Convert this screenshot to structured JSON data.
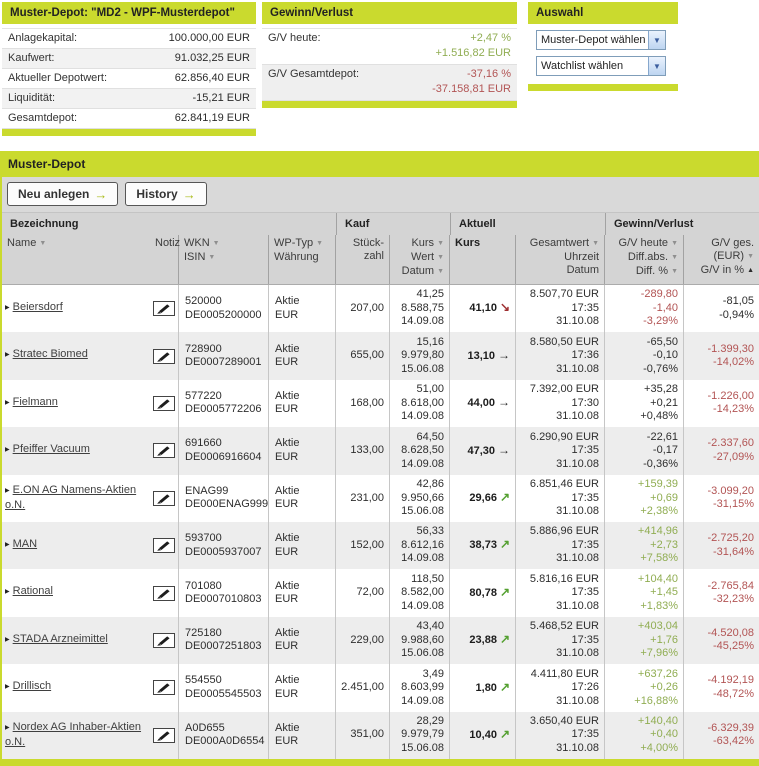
{
  "colors": {
    "accent_green": "#cada2e",
    "positive_text": "#90ad52",
    "negative_text": "#b25454",
    "trend_up": "#54a030",
    "trend_down": "#9e2f31"
  },
  "icons": {
    "arrow_right": "→",
    "sort_desc": "▼",
    "sort_asc": "▲",
    "trend_up": "↗",
    "trend_down": "↘",
    "trend_flat": "→",
    "select_chevron": "▼",
    "row_bullet": "▶"
  },
  "panels": {
    "depot": {
      "title": "Muster-Depot: \"MD2 - WPF-Musterdepot\"",
      "rows": [
        {
          "label": "Anlagekapital:",
          "value": "100.000,00 EUR"
        },
        {
          "label": "Kaufwert:",
          "value": "91.032,25 EUR"
        },
        {
          "label": "Aktueller Depotwert:",
          "value": "62.856,40 EUR"
        },
        {
          "label": "Liquidität:",
          "value": "-15,21 EUR"
        },
        {
          "label": "Gesamtdepot:",
          "value": "62.841,19 EUR"
        }
      ]
    },
    "gewinn_verlust": {
      "title": "Gewinn/Verlust",
      "rows": [
        {
          "label": "G/V heute:",
          "percent": "+2,47 %",
          "eur": "+1.516,82 EUR",
          "tone": "positive"
        },
        {
          "label": "G/V Gesamtdepot:",
          "percent": "-37,16 %",
          "eur": "-37.158,81 EUR",
          "tone": "negative"
        }
      ]
    },
    "auswahl": {
      "title": "Auswahl",
      "selects": [
        {
          "value": "Muster-Depot wählen"
        },
        {
          "value": "Watchlist wählen"
        }
      ]
    }
  },
  "table": {
    "title": "Muster-Depot",
    "buttons": [
      {
        "label": "Neu anlegen"
      },
      {
        "label": "History"
      }
    ],
    "groups": [
      "Bezeichnung",
      "Kauf",
      "Aktuell",
      "Gewinn/Verlust"
    ],
    "subheaders": [
      {
        "key": "name",
        "align": "left",
        "sep": false,
        "bold": false,
        "lines": [
          [
            "Name",
            "desc"
          ]
        ]
      },
      {
        "key": "notiz",
        "align": "right",
        "sep": true,
        "bold": false,
        "lines": [
          [
            "Notiz",
            null
          ]
        ]
      },
      {
        "key": "wkn-isin",
        "align": "left",
        "sep": true,
        "bold": false,
        "lines": [
          [
            "WKN",
            "desc"
          ],
          [
            "ISIN",
            "desc"
          ]
        ]
      },
      {
        "key": "wptyp-waehrung",
        "align": "left",
        "sep": true,
        "bold": false,
        "lines": [
          [
            "WP-Typ",
            "desc"
          ],
          [
            "Währung",
            null
          ]
        ]
      },
      {
        "key": "stueckzahl",
        "align": "right",
        "sep": true,
        "bold": false,
        "lines": [
          [
            "Stück-",
            null
          ],
          [
            "zahl",
            null
          ]
        ]
      },
      {
        "key": "kauf-kurs-wert-datum",
        "align": "right",
        "sep": true,
        "bold": false,
        "lines": [
          [
            "Kurs",
            "desc"
          ],
          [
            "Wert",
            "desc"
          ],
          [
            "Datum",
            "desc"
          ]
        ]
      },
      {
        "key": "aktuell-kurs",
        "align": "left",
        "sep": true,
        "bold": true,
        "lines": [
          [
            "Kurs",
            null
          ]
        ]
      },
      {
        "key": "gesamtwert-uhrzeit-datum",
        "align": "right",
        "sep": true,
        "bold": false,
        "lines": [
          [
            "Gesamtwert",
            "desc"
          ],
          [
            "Uhrzeit",
            null
          ],
          [
            "Datum",
            null
          ]
        ]
      },
      {
        "key": "gv-heute",
        "align": "right",
        "sep": true,
        "bold": false,
        "lines": [
          [
            "G/V heute",
            "desc"
          ],
          [
            "Diff.abs.",
            "desc"
          ],
          [
            "Diff. %",
            "desc"
          ]
        ]
      },
      {
        "key": "gv-ges",
        "align": "right",
        "sep": false,
        "bold": false,
        "lines": [
          [
            "G/V ges.",
            null
          ],
          [
            "(EUR)",
            "desc"
          ],
          [
            "G/V in %",
            "asc"
          ]
        ]
      }
    ],
    "rows": [
      {
        "name": "Beiersdorf",
        "wkn": "520000",
        "isin": "DE0005200000",
        "typ": "Aktie",
        "waehrung": "EUR",
        "stueckzahl": "207,00",
        "kauf_kurs": "41,25",
        "kauf_wert": "8.588,75",
        "kauf_datum": "14.09.08",
        "kurs": "41,10",
        "trend": "down",
        "gesamtwert": "8.507,70 EUR",
        "uhrzeit": "17:35",
        "datum": "31.10.08",
        "gv_heute": {
          "eur": "-289,80",
          "abs": "-1,40",
          "pct": "-3,29%",
          "tone": "negative"
        },
        "gv_ges": {
          "eur": "-81,05",
          "pct": "-0,94%",
          "tone": "neutral"
        }
      },
      {
        "name": "Stratec Biomed",
        "wkn": "728900",
        "isin": "DE0007289001",
        "typ": "Aktie",
        "waehrung": "EUR",
        "stueckzahl": "655,00",
        "kauf_kurs": "15,16",
        "kauf_wert": "9.979,80",
        "kauf_datum": "15.06.08",
        "kurs": "13,10",
        "trend": "flat",
        "gesamtwert": "8.580,50 EUR",
        "uhrzeit": "17:36",
        "datum": "31.10.08",
        "gv_heute": {
          "eur": "-65,50",
          "abs": "-0,10",
          "pct": "-0,76%",
          "tone": "neutral"
        },
        "gv_ges": {
          "eur": "-1.399,30",
          "pct": "-14,02%",
          "tone": "negative"
        }
      },
      {
        "name": "Fielmann",
        "wkn": "577220",
        "isin": "DE0005772206",
        "typ": "Aktie",
        "waehrung": "EUR",
        "stueckzahl": "168,00",
        "kauf_kurs": "51,00",
        "kauf_wert": "8.618,00",
        "kauf_datum": "14.09.08",
        "kurs": "44,00",
        "trend": "flat",
        "gesamtwert": "7.392,00 EUR",
        "uhrzeit": "17:30",
        "datum": "31.10.08",
        "gv_heute": {
          "eur": "+35,28",
          "abs": "+0,21",
          "pct": "+0,48%",
          "tone": "neutral"
        },
        "gv_ges": {
          "eur": "-1.226,00",
          "pct": "-14,23%",
          "tone": "negative"
        }
      },
      {
        "name": "Pfeiffer Vacuum",
        "wkn": "691660",
        "isin": "DE0006916604",
        "typ": "Aktie",
        "waehrung": "EUR",
        "stueckzahl": "133,00",
        "kauf_kurs": "64,50",
        "kauf_wert": "8.628,50",
        "kauf_datum": "14.09.08",
        "kurs": "47,30",
        "trend": "flat",
        "gesamtwert": "6.290,90 EUR",
        "uhrzeit": "17:35",
        "datum": "31.10.08",
        "gv_heute": {
          "eur": "-22,61",
          "abs": "-0,17",
          "pct": "-0,36%",
          "tone": "neutral"
        },
        "gv_ges": {
          "eur": "-2.337,60",
          "pct": "-27,09%",
          "tone": "negative"
        }
      },
      {
        "name": "E.ON AG Namens-Aktien o.N.",
        "wkn": "ENAG99",
        "isin": "DE000ENAG999",
        "typ": "Aktie",
        "waehrung": "EUR",
        "stueckzahl": "231,00",
        "kauf_kurs": "42,86",
        "kauf_wert": "9.950,66",
        "kauf_datum": "15.06.08",
        "kurs": "29,66",
        "trend": "up",
        "gesamtwert": "6.851,46 EUR",
        "uhrzeit": "17:35",
        "datum": "31.10.08",
        "gv_heute": {
          "eur": "+159,39",
          "abs": "+0,69",
          "pct": "+2,38%",
          "tone": "positive"
        },
        "gv_ges": {
          "eur": "-3.099,20",
          "pct": "-31,15%",
          "tone": "negative"
        }
      },
      {
        "name": "MAN",
        "wkn": "593700",
        "isin": "DE0005937007",
        "typ": "Aktie",
        "waehrung": "EUR",
        "stueckzahl": "152,00",
        "kauf_kurs": "56,33",
        "kauf_wert": "8.612,16",
        "kauf_datum": "14.09.08",
        "kurs": "38,73",
        "trend": "up",
        "gesamtwert": "5.886,96 EUR",
        "uhrzeit": "17:35",
        "datum": "31.10.08",
        "gv_heute": {
          "eur": "+414,96",
          "abs": "+2,73",
          "pct": "+7,58%",
          "tone": "positive"
        },
        "gv_ges": {
          "eur": "-2.725,20",
          "pct": "-31,64%",
          "tone": "negative"
        }
      },
      {
        "name": "Rational",
        "wkn": "701080",
        "isin": "DE0007010803",
        "typ": "Aktie",
        "waehrung": "EUR",
        "stueckzahl": "72,00",
        "kauf_kurs": "118,50",
        "kauf_wert": "8.582,00",
        "kauf_datum": "14.09.08",
        "kurs": "80,78",
        "trend": "up",
        "gesamtwert": "5.816,16 EUR",
        "uhrzeit": "17:35",
        "datum": "31.10.08",
        "gv_heute": {
          "eur": "+104,40",
          "abs": "+1,45",
          "pct": "+1,83%",
          "tone": "positive"
        },
        "gv_ges": {
          "eur": "-2.765,84",
          "pct": "-32,23%",
          "tone": "negative"
        }
      },
      {
        "name": "STADA Arzneimittel",
        "wkn": "725180",
        "isin": "DE0007251803",
        "typ": "Aktie",
        "waehrung": "EUR",
        "stueckzahl": "229,00",
        "kauf_kurs": "43,40",
        "kauf_wert": "9.988,60",
        "kauf_datum": "15.06.08",
        "kurs": "23,88",
        "trend": "up",
        "gesamtwert": "5.468,52 EUR",
        "uhrzeit": "17:35",
        "datum": "31.10.08",
        "gv_heute": {
          "eur": "+403,04",
          "abs": "+1,76",
          "pct": "+7,96%",
          "tone": "positive"
        },
        "gv_ges": {
          "eur": "-4.520,08",
          "pct": "-45,25%",
          "tone": "negative"
        }
      },
      {
        "name": "Drillisch",
        "wkn": "554550",
        "isin": "DE0005545503",
        "typ": "Aktie",
        "waehrung": "EUR",
        "stueckzahl": "2.451,00",
        "kauf_kurs": "3,49",
        "kauf_wert": "8.603,99",
        "kauf_datum": "14.09.08",
        "kurs": "1,80",
        "trend": "up",
        "gesamtwert": "4.411,80 EUR",
        "uhrzeit": "17:26",
        "datum": "31.10.08",
        "gv_heute": {
          "eur": "+637,26",
          "abs": "+0,26",
          "pct": "+16,88%",
          "tone": "positive"
        },
        "gv_ges": {
          "eur": "-4.192,19",
          "pct": "-48,72%",
          "tone": "negative"
        }
      },
      {
        "name": "Nordex AG Inhaber-Aktien o.N.",
        "wkn": "A0D655",
        "isin": "DE000A0D6554",
        "typ": "Aktie",
        "waehrung": "EUR",
        "stueckzahl": "351,00",
        "kauf_kurs": "28,29",
        "kauf_wert": "9.979,79",
        "kauf_datum": "15.06.08",
        "kurs": "10,40",
        "trend": "up",
        "gesamtwert": "3.650,40 EUR",
        "uhrzeit": "17:35",
        "datum": "31.10.08",
        "gv_heute": {
          "eur": "+140,40",
          "abs": "+0,40",
          "pct": "+4,00%",
          "tone": "positive"
        },
        "gv_ges": {
          "eur": "-6.329,39",
          "pct": "-63,42%",
          "tone": "negative"
        }
      }
    ]
  }
}
